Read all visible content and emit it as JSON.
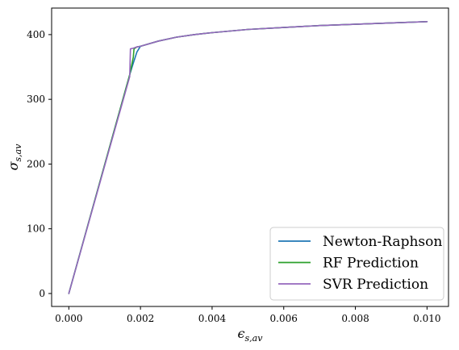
{
  "chart_data": {
    "type": "line",
    "xlabel_main": "ϵ",
    "xlabel_sub": "s,av",
    "ylabel_main": "σ",
    "ylabel_sub": "s,av",
    "xlim": [
      -0.00048,
      0.0106
    ],
    "ylim": [
      -20,
      441
    ],
    "xticks": [
      0.0,
      0.002,
      0.004,
      0.006,
      0.008,
      0.01
    ],
    "xtick_labels": [
      "0.000",
      "0.002",
      "0.004",
      "0.006",
      "0.008",
      "0.010"
    ],
    "yticks": [
      0,
      100,
      200,
      300,
      400
    ],
    "ytick_labels": [
      "0",
      "100",
      "200",
      "300",
      "400"
    ],
    "grid": false,
    "legend_position": "lower-right",
    "series": [
      {
        "name": "Newton-Raphson",
        "color": "#1f77b4",
        "x": [
          0.0,
          0.0017,
          0.0018,
          0.0019,
          0.002,
          0.0025,
          0.003,
          0.0035,
          0.004,
          0.005,
          0.006,
          0.007,
          0.008,
          0.009,
          0.01
        ],
        "y": [
          0,
          338,
          356,
          373,
          382,
          390,
          396,
          400,
          403,
          408,
          411,
          414,
          416,
          418,
          420
        ]
      },
      {
        "name": "RF Prediction",
        "color": "#2ca02c",
        "x": [
          0.0,
          0.0017,
          0.0018,
          0.00182,
          0.0019,
          0.002,
          0.0025,
          0.003,
          0.0035,
          0.004,
          0.005,
          0.006,
          0.007,
          0.008,
          0.009,
          0.01
        ],
        "y": [
          0,
          338,
          365,
          378,
          381,
          382,
          390,
          396,
          400,
          403,
          408,
          411,
          414,
          416,
          418,
          420
        ]
      },
      {
        "name": "SVR Prediction",
        "color": "#9467bd",
        "x": [
          0.0,
          0.0017,
          0.00172,
          0.0018,
          0.0019,
          0.002,
          0.0025,
          0.003,
          0.0035,
          0.004,
          0.005,
          0.006,
          0.007,
          0.008,
          0.009,
          0.01
        ],
        "y": [
          0,
          335,
          378,
          379,
          381,
          382,
          390,
          396,
          400,
          403,
          408,
          411,
          414,
          416,
          418,
          420
        ]
      }
    ]
  }
}
